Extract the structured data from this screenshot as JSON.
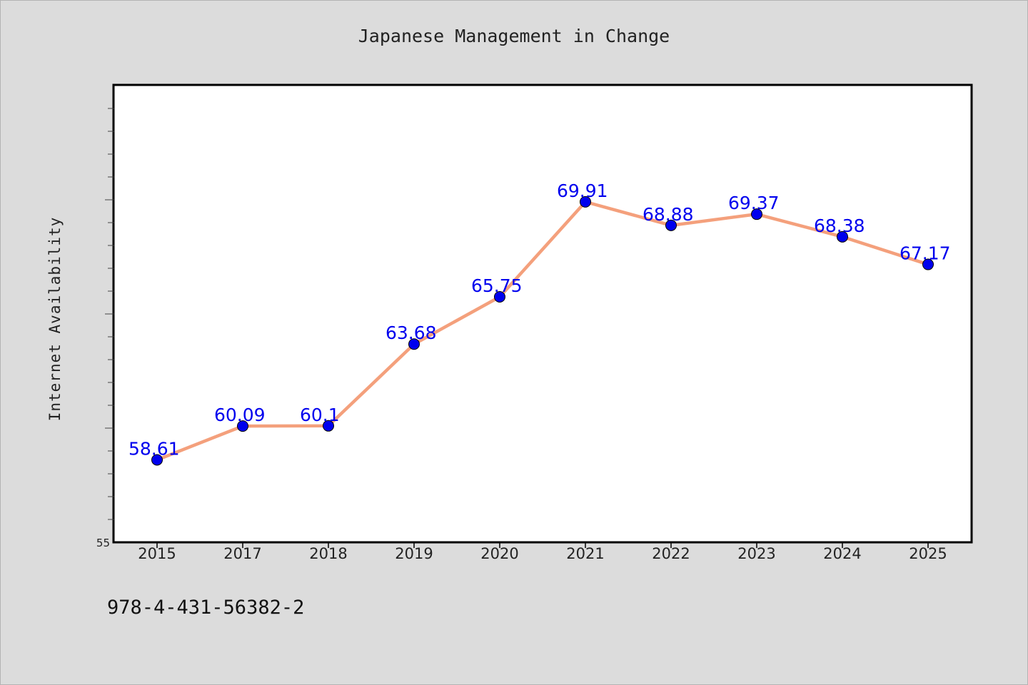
{
  "chart_data": {
    "type": "line",
    "title": "Japanese Management in Change",
    "xlabel": "",
    "ylabel": "Internet Availability",
    "categories": [
      "2015",
      "2017",
      "2018",
      "2019",
      "2020",
      "2021",
      "2022",
      "2023",
      "2024",
      "2025"
    ],
    "series": [
      {
        "values": [
          58.61,
          60.09,
          60.1,
          63.68,
          65.75,
          69.91,
          68.88,
          69.37,
          68.38,
          67.17
        ],
        "labels": [
          "58.61",
          "60.09",
          "60.1",
          "63.68",
          "65.75",
          "69.91",
          "68.88",
          "69.37",
          "68.38",
          "67.17"
        ]
      }
    ],
    "ylim": [
      55,
      75
    ],
    "y_tick_labels_shown": [
      "55"
    ],
    "grid": false,
    "colors": {
      "line": "#f4a07c",
      "marker": "#0000ee",
      "label": "#0000ee",
      "plot_background": "#ffffff",
      "page_background": "#dcdcdc"
    }
  },
  "footer": {
    "isbn": "978-4-431-56382-2"
  }
}
